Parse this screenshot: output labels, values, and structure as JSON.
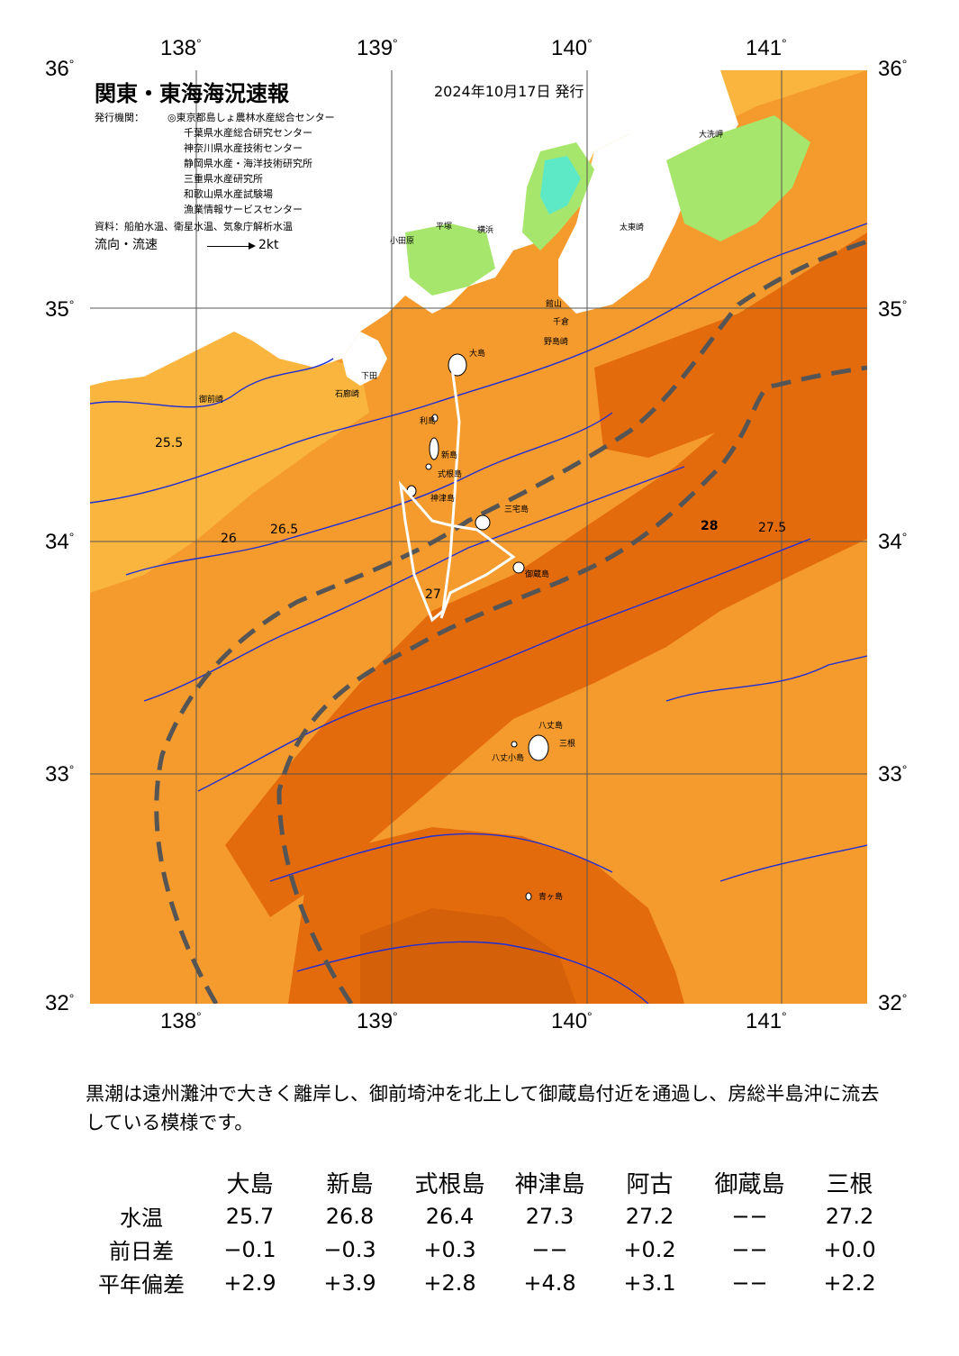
{
  "header": {
    "title": "関東・東海海況速報",
    "date": "2024年10月17日 発行",
    "issuer_label": "発行機関：",
    "issuers": [
      "◎東京都島しょ農林水産総合センター",
      "千葉県水産総合研究センター",
      "神奈川県水産技術センター",
      "静岡県水産・海洋技術研究所",
      "三重県水産研究所",
      "和歌山県水産試験場",
      "漁業情報サービスセンター"
    ],
    "source": "資料：船舶水温、衛星水温、気象庁解析水温",
    "flow_legend": "流向・流速",
    "flow_unit": "2kt"
  },
  "axes": {
    "lon_labels": [
      "138",
      "139",
      "140",
      "141"
    ],
    "lat_labels": [
      "36",
      "35",
      "34",
      "33",
      "32"
    ],
    "degree": "°"
  },
  "colors": {
    "warm_dark": "#e46b0c",
    "warm": "#f59a2c",
    "warm_light": "#f9b53e",
    "mid": "#fbd049",
    "cool": "#f2e466",
    "cold": "#a7e66c",
    "colder": "#5ee9c6",
    "land": "#ffffff",
    "isotherm": "#1f2ed6",
    "kuroshio": "#555555"
  },
  "places": [
    "大島",
    "利島",
    "新島",
    "式根島",
    "神津島",
    "三宅島",
    "御蔵島",
    "八丈島",
    "八丈小島",
    "三根",
    "青ヶ島",
    "大洗岬",
    "太東崎",
    "野島崎",
    "石廊崎",
    "御前崎",
    "下田",
    "小田原",
    "平塚",
    "横浜",
    "館山",
    "千倉"
  ],
  "isotherm_labels": [
    "25.5",
    "26",
    "26.5",
    "27",
    "27.5",
    "28"
  ],
  "description": "黒潮は遠州灘沖で大きく離岸し、御前埼沖を北上して御蔵島付近を通過し、房総半島沖に流去している模様です。",
  "table": {
    "columns": [
      "大島",
      "新島",
      "式根島",
      "神津島",
      "阿古",
      "御蔵島",
      "三根"
    ],
    "rows": [
      {
        "label": "水温",
        "values": [
          "25.7",
          "26.8",
          "26.4",
          "27.3",
          "27.2",
          "−−",
          "27.2"
        ]
      },
      {
        "label": "前日差",
        "values": [
          "−0.1",
          "−0.3",
          "+0.3",
          "−−",
          "+0.2",
          "−−",
          "+0.0"
        ]
      },
      {
        "label": "平年偏差",
        "values": [
          "+2.9",
          "+3.9",
          "+2.8",
          "+4.8",
          "+3.1",
          "−−",
          "+2.2"
        ]
      }
    ]
  }
}
